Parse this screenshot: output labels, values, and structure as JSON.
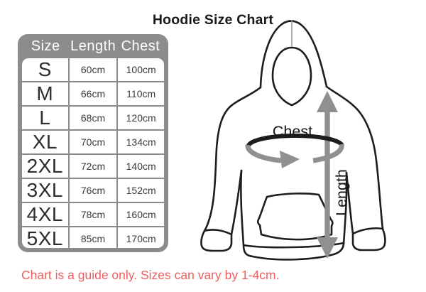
{
  "title": "Hoodie Size Chart",
  "table": {
    "headers": [
      "Size",
      "Length",
      "Chest"
    ],
    "rows": [
      {
        "size": "S",
        "length": "60cm",
        "chest": "100cm"
      },
      {
        "size": "M",
        "length": "66cm",
        "chest": "110cm"
      },
      {
        "size": "L",
        "length": "68cm",
        "chest": "120cm"
      },
      {
        "size": "XL",
        "length": "70cm",
        "chest": "134cm"
      },
      {
        "size": "2XL",
        "length": "72cm",
        "chest": "140cm"
      },
      {
        "size": "3XL",
        "length": "76cm",
        "chest": "152cm"
      },
      {
        "size": "4XL",
        "length": "78cm",
        "chest": "160cm"
      },
      {
        "size": "5XL",
        "length": "85cm",
        "chest": "170cm"
      }
    ]
  },
  "diagram": {
    "chest_label": "Chest",
    "length_label": "Length",
    "icons": {
      "length_arrow": "double-headed-vertical-arrow",
      "chest_arrow": "wrap-around-girth-arrow"
    }
  },
  "footnote": "Chart is a guide only. Sizes can vary by 1-4cm.",
  "colors": {
    "table_gray": "#8b8c8e",
    "cell_white": "#ffffff",
    "text_dark": "#2d2d2d",
    "outline_black": "#1d1d1d",
    "arrow_gray": "#8f9091",
    "note_red": "#ee5e5e",
    "title_black": "#1a1a1a"
  }
}
